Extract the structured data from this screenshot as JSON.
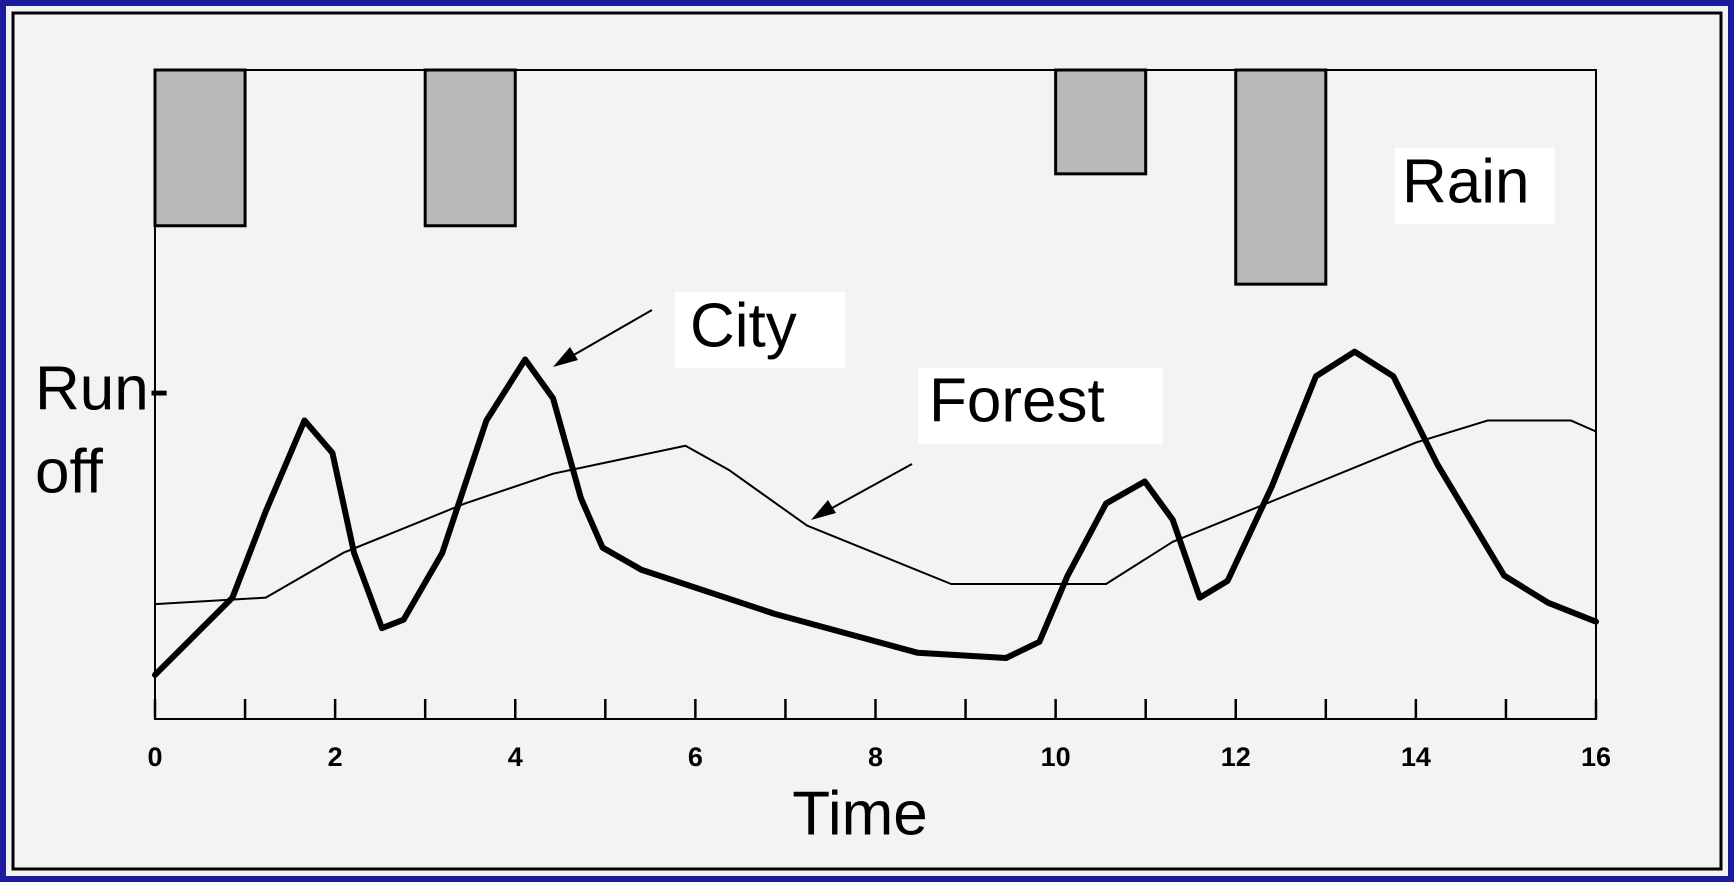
{
  "chart_data": {
    "type": "line",
    "xlabel": "Time",
    "ylabel": [
      "Run-",
      "off"
    ],
    "xlim": [
      0,
      16
    ],
    "xticks": [
      0,
      2,
      4,
      6,
      8,
      10,
      12,
      14,
      16
    ],
    "xminorticks": [
      1,
      3,
      5,
      7,
      9,
      11,
      13,
      15
    ],
    "ylim": [
      0,
      100
    ],
    "y2lim": [
      100,
      0
    ],
    "series": [
      {
        "name": "City",
        "color": "#000000",
        "linewidth": "thick",
        "x": [
          0,
          0.86,
          1.23,
          1.66,
          1.97,
          2.21,
          2.52,
          2.76,
          3.19,
          3.68,
          4.11,
          4.42,
          4.73,
          4.97,
          5.4,
          6.88,
          8.47,
          9.45,
          9.82,
          10.13,
          10.56,
          10.99,
          11.3,
          11.6,
          11.91,
          12.4,
          12.89,
          13.32,
          13.75,
          14.24,
          14.98,
          15.47,
          16
        ],
        "values": [
          6.8,
          18.7,
          32,
          46,
          41,
          25.6,
          14,
          15.3,
          25.6,
          46,
          55.4,
          49.4,
          34,
          26.4,
          23,
          16.2,
          10.2,
          9.4,
          11.9,
          22,
          33.2,
          36.6,
          30.7,
          18.7,
          21.3,
          35.8,
          52.8,
          56.6,
          52.8,
          39.2,
          22.1,
          17.9,
          15
        ]
      },
      {
        "name": "Forest",
        "color": "#000000",
        "linewidth": "thin",
        "x": [
          0,
          1.23,
          2.09,
          3.44,
          4.42,
          5.89,
          6.38,
          7.24,
          8.84,
          10.56,
          11.3,
          14,
          14.8,
          15.72,
          16
        ],
        "values": [
          17.7,
          18.7,
          25.6,
          33.2,
          37.8,
          42.1,
          38.3,
          29.8,
          20.8,
          20.8,
          27.3,
          42.6,
          46,
          46,
          44.3
        ]
      }
    ],
    "rain": {
      "name": "Rain",
      "type": "bar",
      "axis": "y2",
      "color": "#b8b8b8",
      "x": [
        0.5,
        3.5,
        10.5,
        12.5
      ],
      "values": [
        24,
        24,
        16,
        33
      ]
    }
  }
}
